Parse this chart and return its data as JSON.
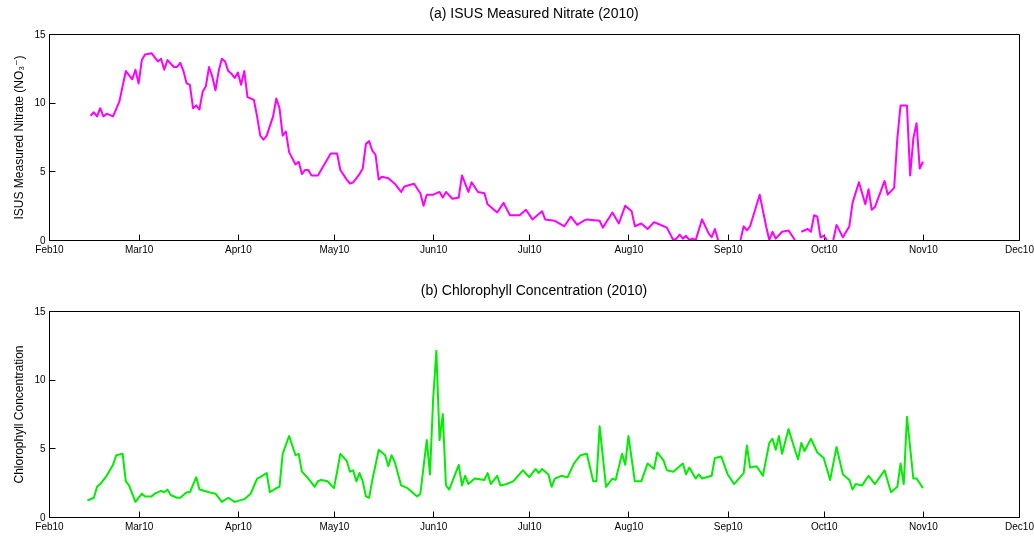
{
  "chart_data": [
    {
      "type": "line",
      "title": "(a)  ISUS Measured Nitrate (2010)",
      "ylabel": "ISUS Measured Nitrate (NO₃⁻)",
      "x": [
        "2010-02-14",
        "2010-02-15",
        "2010-02-16",
        "2010-02-17",
        "2010-02-18",
        "2010-02-19",
        "2010-02-21",
        "2010-02-23",
        "2010-02-25",
        "2010-02-27",
        "2010-02-28",
        "2010-03-01",
        "2010-03-02",
        "2010-03-03",
        "2010-03-05",
        "2010-03-07",
        "2010-03-08",
        "2010-03-09",
        "2010-03-10",
        "2010-03-12",
        "2010-03-13",
        "2010-03-14",
        "2010-03-15",
        "2010-03-16",
        "2010-03-17",
        "2010-03-18",
        "2010-03-19",
        "2010-03-20",
        "2010-03-21",
        "2010-03-22",
        "2010-03-23",
        "2010-03-24",
        "2010-03-25",
        "2010-03-26",
        "2010-03-27",
        "2010-03-28",
        "2010-03-29",
        "2010-03-30",
        "2010-03-31",
        "2010-04-01",
        "2010-04-02",
        "2010-04-03",
        "2010-04-04",
        "2010-04-06",
        "2010-04-07",
        "2010-04-08",
        "2010-04-09",
        "2010-04-10",
        "2010-04-12",
        "2010-04-13",
        "2010-04-14",
        "2010-04-15",
        "2010-04-16",
        "2010-04-17",
        "2010-04-19",
        "2010-04-20",
        "2010-04-21",
        "2010-04-22",
        "2010-04-23",
        "2010-04-24",
        "2010-04-26",
        "2010-04-28",
        "2010-04-30",
        "2010-05-02",
        "2010-05-03",
        "2010-05-05",
        "2010-05-06",
        "2010-05-07",
        "2010-05-09",
        "2010-05-10",
        "2010-05-11",
        "2010-05-12",
        "2010-05-13",
        "2010-05-14",
        "2010-05-15",
        "2010-05-16",
        "2010-05-18",
        "2010-05-20",
        "2010-05-22",
        "2010-05-23",
        "2010-05-26",
        "2010-05-28",
        "2010-05-29",
        "2010-05-30",
        "2010-06-01",
        "2010-06-03",
        "2010-06-04",
        "2010-06-05",
        "2010-06-07",
        "2010-06-09",
        "2010-06-10",
        "2010-06-12",
        "2010-06-13",
        "2010-06-15",
        "2010-06-17",
        "2010-06-18",
        "2010-06-21",
        "2010-06-23",
        "2010-06-25",
        "2010-06-28",
        "2010-06-30",
        "2010-07-02",
        "2010-07-03",
        "2010-07-05",
        "2010-07-06",
        "2010-07-09",
        "2010-07-12",
        "2010-07-14",
        "2010-07-16",
        "2010-07-18",
        "2010-07-19",
        "2010-07-23",
        "2010-07-24",
        "2010-07-27",
        "2010-07-29",
        "2010-07-31",
        "2010-08-02",
        "2010-08-03",
        "2010-08-05",
        "2010-08-07",
        "2010-08-09",
        "2010-08-10",
        "2010-08-13",
        "2010-08-15",
        "2010-08-16",
        "2010-08-17",
        "2010-08-18",
        "2010-08-19",
        "2010-08-20",
        "2010-08-21",
        "2010-08-22",
        "2010-08-24",
        "2010-08-26",
        "2010-08-27",
        "2010-08-28",
        "2010-08-29",
        "2010-08-30",
        "2010-09-05",
        "2010-09-06",
        "2010-09-07",
        "2010-09-08",
        "2010-09-11",
        "2010-09-13",
        "2010-09-14",
        "2010-09-15",
        "2010-09-16",
        "2010-09-18",
        "2010-09-20",
        "2010-09-22",
        "2010-09-23",
        "2010-09-24",
        "2010-09-26",
        "2010-09-27",
        "2010-09-28",
        "2010-09-29",
        "2010-09-30",
        "2010-10-01",
        "2010-10-02",
        "2010-10-03",
        "2010-10-04",
        "2010-10-05",
        "2010-10-07",
        "2010-10-09",
        "2010-10-10",
        "2010-10-12",
        "2010-10-14",
        "2010-10-15",
        "2010-10-16",
        "2010-10-17",
        "2010-10-20",
        "2010-10-21",
        "2010-10-23",
        "2010-10-24",
        "2010-10-25",
        "2010-10-27",
        "2010-10-28",
        "2010-10-29",
        "2010-10-30",
        "2010-10-31",
        "2010-11-01"
      ],
      "series": [
        {
          "color": "#ff00ff",
          "values": [
            9.05,
            9.3,
            9.0,
            9.6,
            9.0,
            9.2,
            9.0,
            10.1,
            12.3,
            11.7,
            12.4,
            11.4,
            13.1,
            13.5,
            13.6,
            13.0,
            13.2,
            12.4,
            13.1,
            12.6,
            12.6,
            12.9,
            12.3,
            11.4,
            11.3,
            9.6,
            9.8,
            9.5,
            10.8,
            11.2,
            12.6,
            11.9,
            10.9,
            12.3,
            13.2,
            13.0,
            12.3,
            12.1,
            11.8,
            12.2,
            11.3,
            12.3,
            10.4,
            10.2,
            9.0,
            7.6,
            7.3,
            7.6,
            9.0,
            10.3,
            9.6,
            7.6,
            7.9,
            6.4,
            5.5,
            5.7,
            4.8,
            5.1,
            5.1,
            4.7,
            4.7,
            5.5,
            6.3,
            6.3,
            5.1,
            4.4,
            4.1,
            4.2,
            4.8,
            5.2,
            7.0,
            7.2,
            6.5,
            6.2,
            4.4,
            4.6,
            4.5,
            4.1,
            3.5,
            3.9,
            4.1,
            3.4,
            2.5,
            3.3,
            3.3,
            3.5,
            3.1,
            3.5,
            3.0,
            3.1,
            4.7,
            3.5,
            4.2,
            3.5,
            3.4,
            2.6,
            2.0,
            2.7,
            1.8,
            1.8,
            2.2,
            1.5,
            1.7,
            2.1,
            1.5,
            1.4,
            1.0,
            1.7,
            1.1,
            1.4,
            1.5,
            1.4,
            0.9,
            2.0,
            1.2,
            2.5,
            2.1,
            1.0,
            1.2,
            0.8,
            1.3,
            1.2,
            0.9,
            0.0,
            0.1,
            0.4,
            0.1,
            0.3,
            0.0,
            0.1,
            0.0,
            1.5,
            0.5,
            0.2,
            0.8,
            0.0,
            null,
            0.0,
            1.0,
            0.7,
            1.0,
            3.3,
            1.0,
            0.0,
            0.6,
            0.1,
            0.6,
            0.7,
            0.0,
            null,
            0.6,
            0.8,
            0.6,
            1.8,
            1.7,
            0.2,
            0.3,
            0.0,
            null,
            0.0,
            1.1,
            0.2,
            1.0,
            2.7,
            4.2,
            2.6,
            3.7,
            2.2,
            2.4,
            4.3,
            3.3,
            3.8,
            7.4,
            9.8,
            9.8,
            4.7,
            7.4,
            8.5,
            5.2,
            5.7
          ]
        }
      ],
      "xlim": [
        "2010-02-01",
        "2010-12-01"
      ],
      "xticks": [
        {
          "value": "2010-02-01",
          "label": "Feb10"
        },
        {
          "value": "2010-03-01",
          "label": "Mar10"
        },
        {
          "value": "2010-04-01",
          "label": "Apr10"
        },
        {
          "value": "2010-05-01",
          "label": "May10"
        },
        {
          "value": "2010-06-01",
          "label": "Jun10"
        },
        {
          "value": "2010-07-01",
          "label": "Jul10"
        },
        {
          "value": "2010-08-01",
          "label": "Aug10"
        },
        {
          "value": "2010-09-01",
          "label": "Sep10"
        },
        {
          "value": "2010-10-01",
          "label": "Oct10"
        },
        {
          "value": "2010-11-01",
          "label": "Nov10"
        },
        {
          "value": "2010-12-01",
          "label": "Dec10"
        }
      ],
      "ylim": [
        0,
        15
      ],
      "yticks": [
        0,
        5,
        10,
        15
      ]
    },
    {
      "type": "line",
      "title": "(b)  Chlorophyll Concentration (2010)",
      "ylabel": "Chlorophyll Concentration",
      "x": [
        "2010-02-13",
        "2010-02-15",
        "2010-02-16",
        "2010-02-17",
        "2010-02-19",
        "2010-02-21",
        "2010-02-22",
        "2010-02-24",
        "2010-02-25",
        "2010-02-26",
        "2010-02-28",
        "2010-03-02",
        "2010-03-03",
        "2010-03-05",
        "2010-03-06",
        "2010-03-08",
        "2010-03-09",
        "2010-03-10",
        "2010-03-11",
        "2010-03-13",
        "2010-03-14",
        "2010-03-16",
        "2010-03-17",
        "2010-03-19",
        "2010-03-20",
        "2010-03-23",
        "2010-03-25",
        "2010-03-27",
        "2010-03-29",
        "2010-03-31",
        "2010-04-03",
        "2010-04-05",
        "2010-04-07",
        "2010-04-08",
        "2010-04-10",
        "2010-04-11",
        "2010-04-13",
        "2010-04-14",
        "2010-04-15",
        "2010-04-17",
        "2010-04-19",
        "2010-04-20",
        "2010-04-21",
        "2010-04-23",
        "2010-04-25",
        "2010-04-26",
        "2010-04-27",
        "2010-04-29",
        "2010-05-01",
        "2010-05-02",
        "2010-05-03",
        "2010-05-05",
        "2010-05-06",
        "2010-05-07",
        "2010-05-08",
        "2010-05-09",
        "2010-05-10",
        "2010-05-11",
        "2010-05-12",
        "2010-05-13",
        "2010-05-15",
        "2010-05-17",
        "2010-05-18",
        "2010-05-19",
        "2010-05-20",
        "2010-05-22",
        "2010-05-24",
        "2010-05-27",
        "2010-05-28",
        "2010-05-30",
        "2010-05-31",
        "2010-06-01",
        "2010-06-02",
        "2010-06-03",
        "2010-06-04",
        "2010-06-05",
        "2010-06-06",
        "2010-06-07",
        "2010-06-09",
        "2010-06-10",
        "2010-06-11",
        "2010-06-12",
        "2010-06-14",
        "2010-06-17",
        "2010-06-18",
        "2010-06-19",
        "2010-06-21",
        "2010-06-22",
        "2010-06-24",
        "2010-06-26",
        "2010-06-29",
        "2010-07-01",
        "2010-07-03",
        "2010-07-04",
        "2010-07-05",
        "2010-07-07",
        "2010-07-08",
        "2010-07-09",
        "2010-07-11",
        "2010-07-13",
        "2010-07-15",
        "2010-07-17",
        "2010-07-19",
        "2010-07-21",
        "2010-07-22",
        "2010-07-23",
        "2010-07-24",
        "2010-07-25",
        "2010-07-27",
        "2010-07-28",
        "2010-07-30",
        "2010-07-31",
        "2010-08-01",
        "2010-08-03",
        "2010-08-05",
        "2010-08-07",
        "2010-08-09",
        "2010-08-10",
        "2010-08-12",
        "2010-08-13",
        "2010-08-15",
        "2010-08-18",
        "2010-08-19",
        "2010-08-20",
        "2010-08-22",
        "2010-08-23",
        "2010-08-24",
        "2010-08-27",
        "2010-08-28",
        "2010-08-30",
        "2010-09-01",
        "2010-09-03",
        "2010-09-06",
        "2010-09-07",
        "2010-09-08",
        "2010-09-10",
        "2010-09-12",
        "2010-09-14",
        "2010-09-15",
        "2010-09-16",
        "2010-09-17",
        "2010-09-18",
        "2010-09-20",
        "2010-09-22",
        "2010-09-23",
        "2010-09-24",
        "2010-09-25",
        "2010-09-27",
        "2010-09-29",
        "2010-10-01",
        "2010-10-03",
        "2010-10-05",
        "2010-10-07",
        "2010-10-09",
        "2010-10-10",
        "2010-10-11",
        "2010-10-13",
        "2010-10-15",
        "2010-10-17",
        "2010-10-20",
        "2010-10-22",
        "2010-10-24",
        "2010-10-25",
        "2010-10-26",
        "2010-10-27",
        "2010-10-29",
        "2010-10-30",
        "2010-11-01"
      ],
      "series": [
        {
          "color": "#00ee00",
          "values": [
            1.2,
            1.4,
            2.2,
            2.4,
            3.0,
            3.8,
            4.5,
            4.6,
            2.6,
            2.3,
            1.1,
            1.7,
            1.5,
            1.5,
            1.7,
            1.9,
            1.8,
            2.0,
            1.6,
            1.4,
            1.4,
            1.8,
            1.8,
            2.9,
            2.0,
            1.8,
            1.7,
            1.1,
            1.4,
            1.1,
            1.3,
            1.7,
            2.8,
            2.9,
            3.2,
            1.8,
            2.1,
            2.2,
            4.6,
            5.9,
            4.5,
            4.6,
            3.3,
            2.8,
            2.2,
            2.6,
            2.7,
            2.6,
            2.1,
            3.3,
            4.6,
            4.1,
            3.3,
            3.4,
            2.6,
            3.2,
            2.6,
            1.5,
            1.4,
            2.7,
            4.9,
            4.5,
            3.7,
            4.5,
            4.0,
            2.3,
            2.1,
            1.5,
            1.7,
            5.6,
            3.1,
            8.6,
            12.1,
            5.6,
            7.5,
            2.3,
            2.0,
            2.6,
            3.8,
            2.3,
            3.0,
            2.4,
            2.8,
            2.7,
            3.2,
            2.4,
            3.0,
            2.3,
            2.4,
            2.6,
            3.4,
            2.9,
            3.5,
            3.2,
            3.5,
            3.1,
            2.2,
            2.8,
            3.0,
            2.9,
            3.9,
            4.5,
            4.6,
            2.6,
            2.6,
            6.6,
            4.4,
            2.2,
            2.8,
            2.7,
            4.6,
            3.8,
            5.9,
            2.6,
            2.6,
            3.9,
            3.5,
            4.7,
            4.1,
            3.4,
            3.3,
            3.9,
            3.1,
            3.6,
            2.8,
            3.1,
            2.8,
            3.0,
            4.3,
            4.4,
            3.1,
            2.4,
            3.2,
            5.2,
            3.6,
            3.7,
            3.0,
            5.4,
            5.7,
            4.9,
            5.9,
            4.6,
            6.4,
            4.9,
            4.2,
            5.4,
            4.8,
            5.7,
            4.7,
            4.3,
            2.7,
            5.1,
            3.1,
            2.7,
            2.0,
            2.4,
            2.3,
            3.0,
            2.4,
            3.4,
            1.8,
            2.2,
            3.9,
            2.4,
            7.3,
            2.8,
            2.8,
            2.1
          ]
        }
      ],
      "xlim": [
        "2010-02-01",
        "2010-12-01"
      ],
      "xticks": [
        {
          "value": "2010-02-01",
          "label": "Feb10"
        },
        {
          "value": "2010-03-01",
          "label": "Mar10"
        },
        {
          "value": "2010-04-01",
          "label": "Apr10"
        },
        {
          "value": "2010-05-01",
          "label": "May10"
        },
        {
          "value": "2010-06-01",
          "label": "Jun10"
        },
        {
          "value": "2010-07-01",
          "label": "Jul10"
        },
        {
          "value": "2010-08-01",
          "label": "Aug10"
        },
        {
          "value": "2010-09-01",
          "label": "Sep10"
        },
        {
          "value": "2010-10-01",
          "label": "Oct10"
        },
        {
          "value": "2010-11-01",
          "label": "Nov10"
        },
        {
          "value": "2010-12-01",
          "label": "Dec10"
        }
      ],
      "ylim": [
        0,
        15
      ],
      "yticks": [
        0,
        5,
        10,
        15
      ]
    }
  ]
}
